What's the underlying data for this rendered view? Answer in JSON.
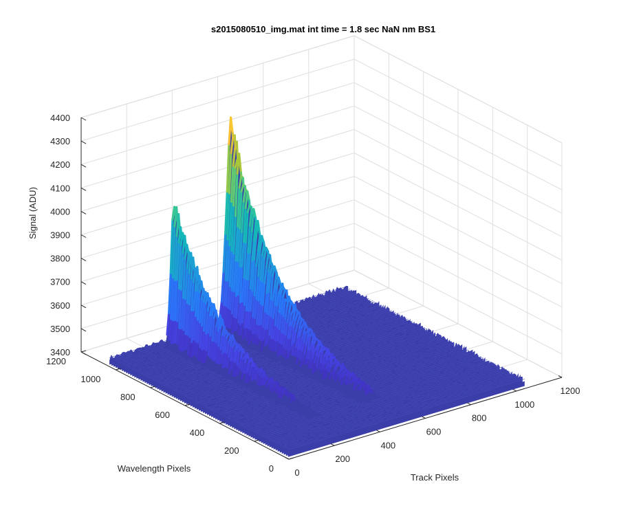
{
  "chart_data": {
    "type": "surface3d",
    "title": "s2015080510_img.mat int time = 1.8 sec  NaN nm BS1",
    "xlabel": "Track Pixels",
    "ylabel": "Wavelength Pixels",
    "zlabel": "Signal (ADU)",
    "xlim": [
      0,
      1200
    ],
    "ylim": [
      0,
      1200
    ],
    "zlim": [
      3400,
      4400
    ],
    "x_ticks": [
      "0",
      "200",
      "400",
      "600",
      "800",
      "1000",
      "1200"
    ],
    "y_ticks": [
      "0",
      "200",
      "400",
      "600",
      "800",
      "1000",
      "1200"
    ],
    "z_ticks": [
      "3400",
      "3500",
      "3600",
      "3700",
      "3800",
      "3900",
      "4000",
      "4100",
      "4200",
      "4300",
      "4400"
    ],
    "grid": true,
    "colormap": "parula",
    "baseline": 3430,
    "data_extent": {
      "x": [
        10,
        1050
      ],
      "y": [
        10,
        1050
      ]
    },
    "peaks": [
      {
        "x_center": 250,
        "x_width": 20,
        "y_start": 1000,
        "y_end": 180,
        "peak_value": 4100,
        "decay": 3.2
      },
      {
        "x_center": 500,
        "x_width": 30,
        "y_start": 1000,
        "y_end": 180,
        "peak_value": 4380,
        "decay": 3.0
      }
    ]
  },
  "colors": {
    "background": "#ffffff",
    "grid": "#dedede",
    "axis": "#262626",
    "floor": "#3b3ea8"
  }
}
